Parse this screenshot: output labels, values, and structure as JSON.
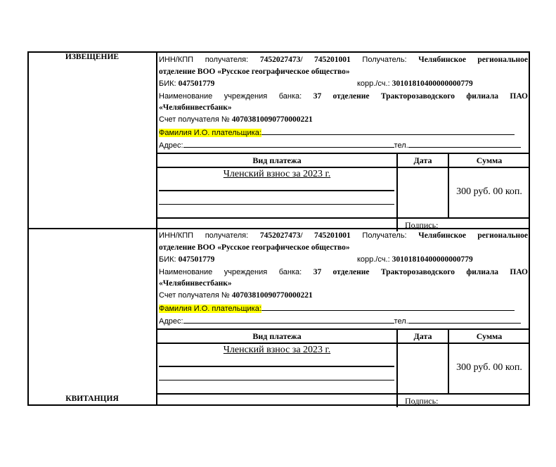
{
  "sections": [
    {
      "side_label": "ИЗВЕЩЕНИЕ"
    },
    {
      "side_label": "КВИТАНЦИЯ"
    }
  ],
  "form": {
    "inn_label": "ИНН/КПП получателя:",
    "inn_value": "7452027473/ 745201001",
    "recipient_label": "Получатель:",
    "recipient_value_1": "Челябинское региональное",
    "recipient_value_2": "отделение ВОО «Русское географическое общество»",
    "bik_label": "БИК:",
    "bik_value": "047501779",
    "corr_label": "корр./сч.:",
    "corr_value": "30101810400000000779",
    "bank_label": "Наименование учреждения банка:",
    "bank_value_1": "37 отделение Тракторозаводского филиала ПАО",
    "bank_value_2": "«Челябинвестбанк»",
    "account_label": "Счет получателя №",
    "account_value": "40703810090770000221",
    "payer_label": "Фамилия И.О. плательщика:",
    "payer_value": "",
    "address_label": "Адрес:",
    "address_value": "",
    "phone_label": "тел.",
    "phone_value": "",
    "col_type": "Вид платежа",
    "col_date": "Дата",
    "col_sum": "Сумма",
    "payment_type": "Членский взнос за 2023 г.",
    "date_value": "",
    "sum_value": "300 руб. 00 коп.",
    "signature_label": "Подпись:"
  },
  "colors": {
    "highlight": "#ffff00"
  }
}
